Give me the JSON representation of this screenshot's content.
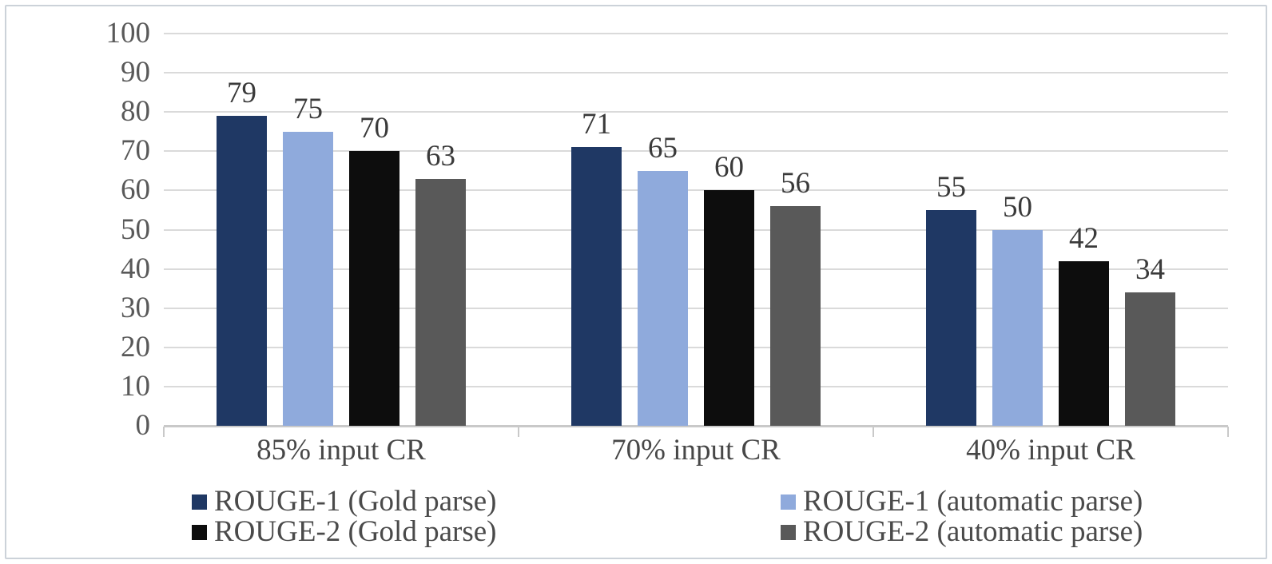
{
  "figure": {
    "title": "",
    "background_color": "#ffffff",
    "frame_border_color": "#ccd2d9"
  },
  "chart_data": {
    "type": "bar",
    "title": "",
    "xlabel": "",
    "ylabel": "",
    "categories": [
      "85% input CR",
      "70% input CR",
      "40% input CR"
    ],
    "series": [
      {
        "name": "ROUGE-1 (Gold parse)",
        "color": "#1F3864",
        "values": [
          79,
          71,
          55
        ]
      },
      {
        "name": "ROUGE-1 (automatic parse)",
        "color": "#8FAADC",
        "values": [
          75,
          65,
          50
        ]
      },
      {
        "name": "ROUGE-2 (Gold parse)",
        "color": "#0D0D0D",
        "values": [
          70,
          60,
          42
        ]
      },
      {
        "name": "ROUGE-2 (automatic parse)",
        "color": "#595959",
        "values": [
          63,
          56,
          34
        ]
      }
    ],
    "ylim": [
      0,
      100
    ],
    "yticks": [
      0,
      10,
      20,
      30,
      40,
      50,
      60,
      70,
      80,
      90,
      100
    ],
    "grid": true,
    "data_labels": true,
    "legend_position": "bottom",
    "legend_columns": 2,
    "legend_column_order": [
      [
        0,
        2
      ],
      [
        1,
        3
      ]
    ]
  }
}
